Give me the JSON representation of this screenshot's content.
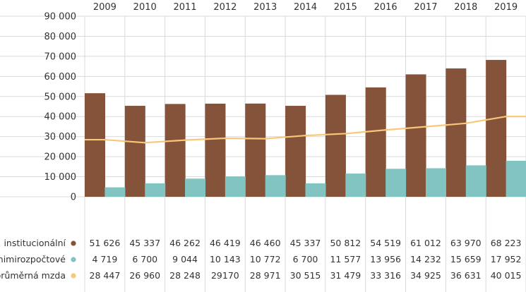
{
  "chart_data": {
    "type": "bar",
    "categories": [
      "2009",
      "2010",
      "2011",
      "2012",
      "2013",
      "2014",
      "2015",
      "2016",
      "2017",
      "2018",
      "2019"
    ],
    "series": [
      {
        "name": "institucionální",
        "kind": "bar",
        "color": "#85523a",
        "values": [
          51626,
          45337,
          46262,
          46419,
          46460,
          45337,
          50812,
          54519,
          61012,
          63970,
          68223
        ],
        "labels": [
          "51 626",
          "45 337",
          "46 262",
          "46 419",
          "46 460",
          "45 337",
          "50 812",
          "54 519",
          "61 012",
          "63 970",
          "68 223"
        ]
      },
      {
        "name": "mimirozpočtové",
        "kind": "bar",
        "color": "#82c4c2",
        "values": [
          4719,
          6700,
          9044,
          10143,
          10772,
          6700,
          11577,
          13956,
          14232,
          15659,
          17952
        ],
        "labels": [
          "4 719",
          "6 700",
          "9 044",
          "10 143",
          "10 772",
          "6 700",
          "11 577",
          "13 956",
          "14 232",
          "15 659",
          "17 952"
        ]
      },
      {
        "name": "průměrná mzda",
        "kind": "line",
        "color": "#f9c779",
        "values": [
          28447,
          26960,
          28248,
          29170,
          28971,
          30515,
          31479,
          33316,
          34925,
          36631,
          40015
        ],
        "labels": [
          "28 447",
          "26 960",
          "28 248",
          "29170",
          "28 971",
          "30 515",
          "31 479",
          "33 316",
          "34 925",
          "36 631",
          "40 015"
        ]
      }
    ],
    "yticks": [
      0,
      10000,
      20000,
      30000,
      40000,
      50000,
      60000,
      70000,
      80000,
      90000
    ],
    "ytick_labels": [
      "0",
      "10 000",
      "20 000",
      "30 000",
      "40 000",
      "50 000",
      "60 000",
      "70 000",
      "80 000",
      "90 000"
    ],
    "ylim": [
      0,
      90000
    ],
    "grid": true,
    "legend": "bottom-left, in data table"
  }
}
